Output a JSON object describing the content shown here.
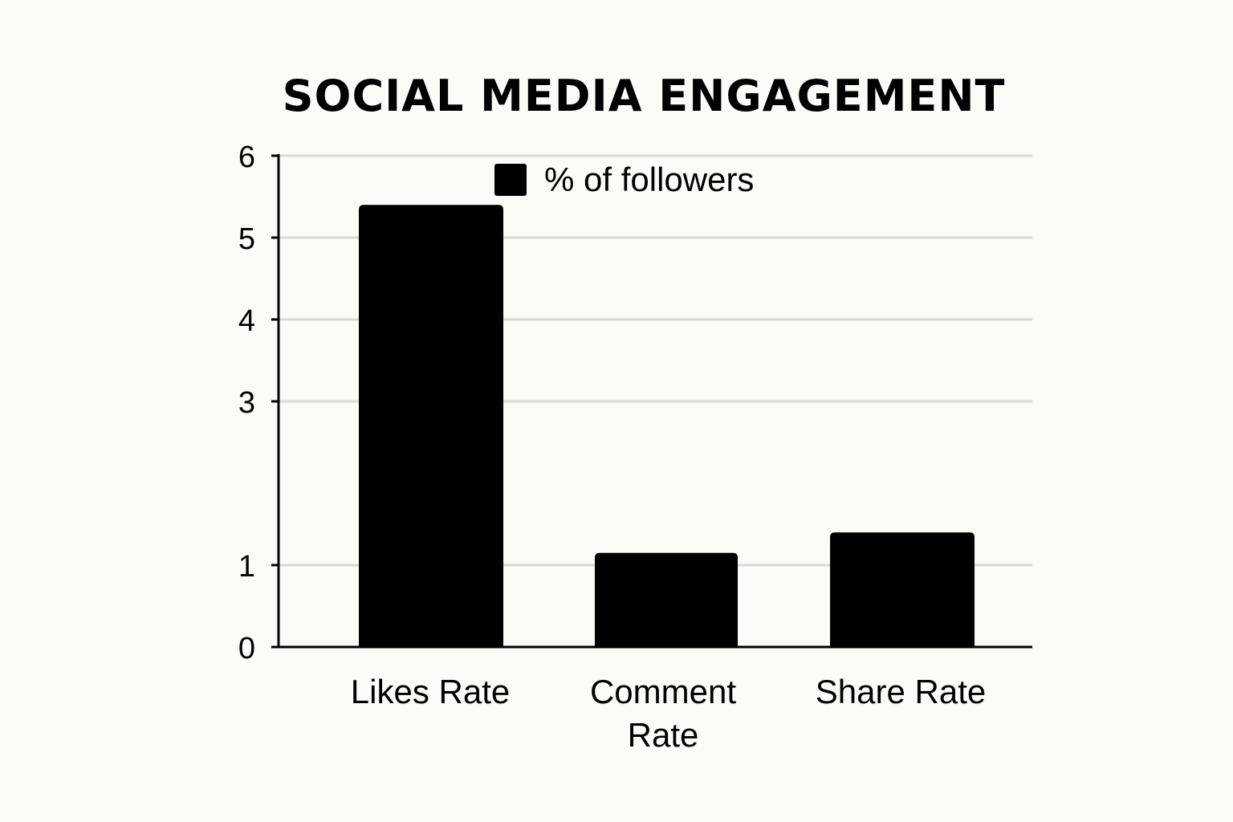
{
  "chart_data": {
    "type": "bar",
    "title": "SOCIAL MEDIA ENGAGEMENT",
    "series": [
      {
        "name": "% of followers",
        "values": [
          5.4,
          1.15,
          1.4
        ],
        "color": "#000000"
      }
    ],
    "categories": [
      [
        "Likes Rate"
      ],
      [
        "Comment",
        "Rate"
      ],
      [
        "Share Rate"
      ]
    ],
    "y_ticks": [
      0,
      1,
      3,
      4,
      5,
      6
    ],
    "ylim": [
      0,
      6
    ],
    "xlabel": "",
    "ylabel": "",
    "grid": true,
    "legend_position": "top-center"
  }
}
